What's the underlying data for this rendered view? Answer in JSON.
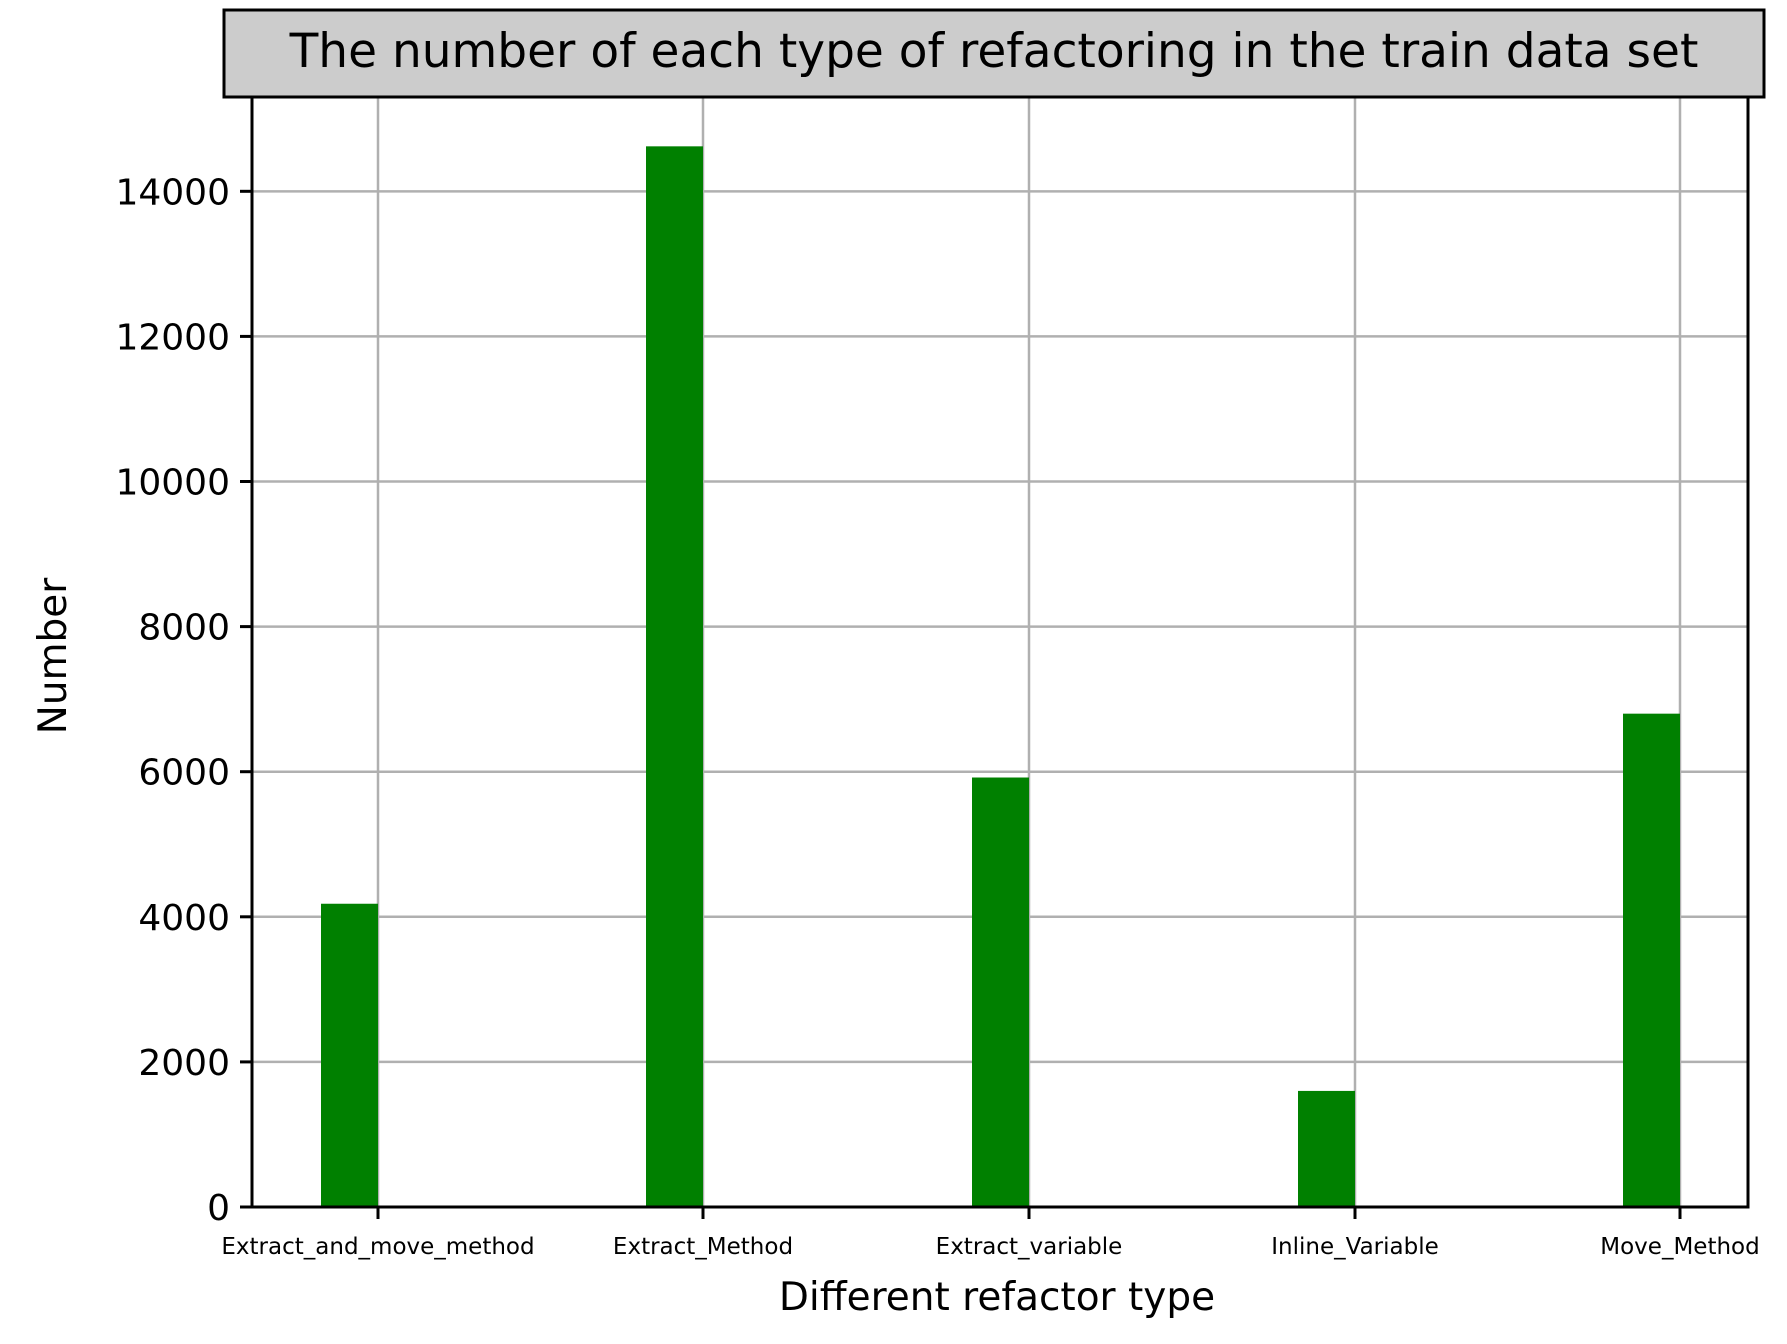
{
  "chart_data": {
    "type": "bar",
    "title": "The number of each type of refactoring in the train data set",
    "xlabel": "Different refactor type",
    "ylabel": "Number",
    "categories": [
      "Extract_and_move_method",
      "Extract_Method",
      "Extract_variable",
      "Inline_Variable",
      "Move_Method"
    ],
    "values": [
      4180,
      14620,
      5920,
      1600,
      6800
    ],
    "yticks": [
      0,
      2000,
      4000,
      6000,
      8000,
      10000,
      12000,
      14000
    ],
    "ylim": [
      0,
      15300
    ],
    "grid": true,
    "bar_color": "#008000",
    "title_box_color": "#cccccc"
  }
}
